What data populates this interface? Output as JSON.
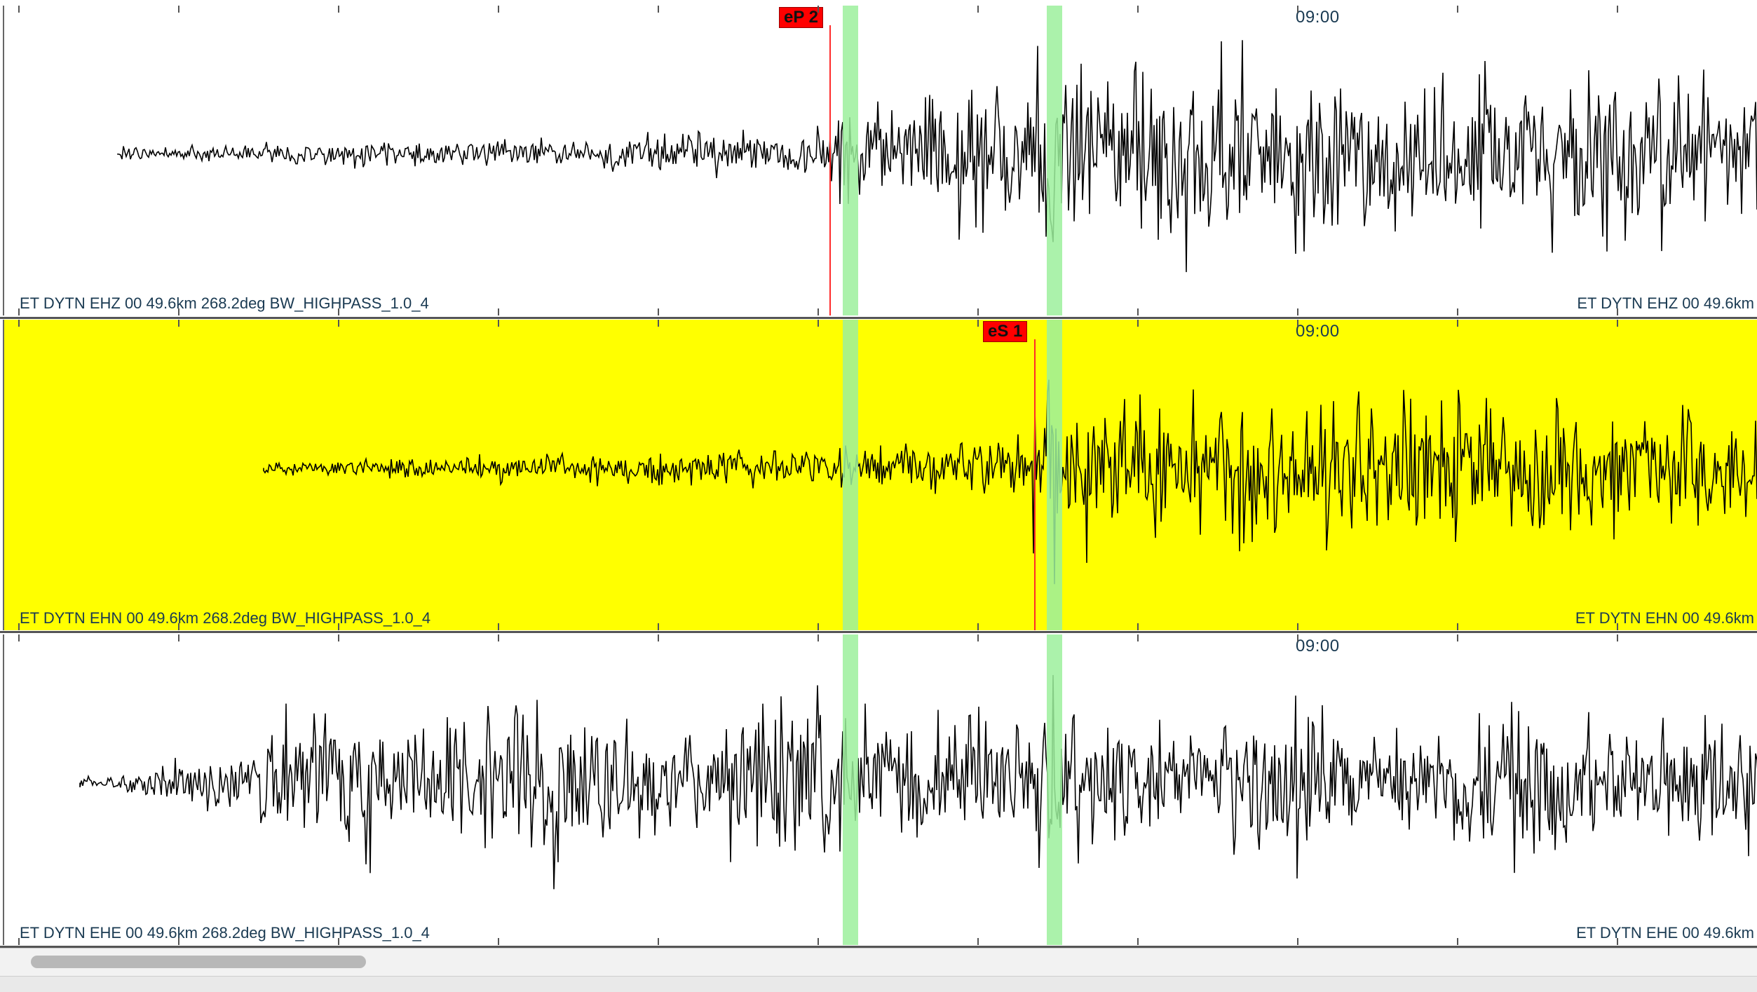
{
  "traces": [
    {
      "id": "ehz",
      "time_label": "09:00",
      "left_label": "ET DYTN EHZ 00 49.6km 268.2deg BW_HIGHPASS_1.0_4",
      "right_label": "ET DYTN EHZ 00 49.6km",
      "highlighted": false,
      "background": "#ffffff",
      "pick": "eP 2"
    },
    {
      "id": "ehn",
      "time_label": "09:00",
      "left_label": "ET DYTN EHN 00 49.6km 268.2deg BW_HIGHPASS_1.0_4",
      "right_label": "ET DYTN EHN 00 49.6km",
      "highlighted": true,
      "background": "#ffff00",
      "pick": "eS 1"
    },
    {
      "id": "ehe",
      "time_label": "09:00",
      "left_label": "ET DYTN EHE 00 49.6km 268.2deg BW_HIGHPASS_1.0_4",
      "right_label": "ET DYTN EHE 00 49.6km",
      "highlighted": false,
      "background": "#ffffff",
      "pick": ""
    }
  ],
  "colors": {
    "pick": "#ff0000",
    "window_band": "#9cf09c",
    "highlight": "#ffff00",
    "waveform": "#000000",
    "label_text": "#1a3a52"
  }
}
